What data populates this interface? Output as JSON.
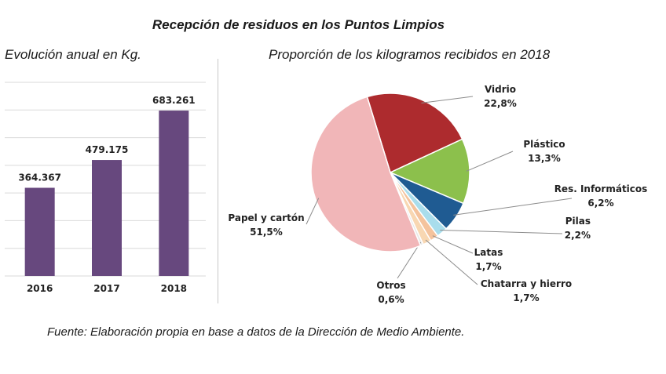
{
  "header": {
    "title": "Recepción de residuos en los Puntos Limpios",
    "bar_subtitle": "Evolución anual en Kg.",
    "pie_subtitle": "Proporción de los kilogramos recibidos en 2018"
  },
  "footer": {
    "source": "Fuente: Elaboración propia en base a datos de la Dirección de Medio Ambiente."
  },
  "colors": {
    "bar": "#67487e",
    "vidrio": "#ad2b2e",
    "plastico": "#8cc04c",
    "res_informaticos": "#1f5b92",
    "pilas": "#a9ddec",
    "latas": "#f4c39d",
    "chatarra": "#f8d7b2",
    "otros": "#e8e8e8",
    "papel": "#f1b6b8"
  },
  "chart_data": [
    {
      "type": "bar",
      "categories": [
        "2016",
        "2017",
        "2018"
      ],
      "values": [
        364367,
        479175,
        683261
      ],
      "value_labels": [
        "364.367",
        "479.175",
        "683.261"
      ],
      "ylim": [
        0,
        800000
      ],
      "grid": true,
      "xlabel": "",
      "ylabel": ""
    },
    {
      "type": "pie",
      "slices": [
        {
          "label": "Vidrio",
          "pct_label": "22,8%",
          "value": 22.8,
          "color_key": "vidrio"
        },
        {
          "label": "Plástico",
          "pct_label": "13,3%",
          "value": 13.3,
          "color_key": "plastico"
        },
        {
          "label": "Res. Informáticos",
          "pct_label": "6,2%",
          "value": 6.2,
          "color_key": "res_informaticos"
        },
        {
          "label": "Pilas",
          "pct_label": "2,2%",
          "value": 2.2,
          "color_key": "pilas"
        },
        {
          "label": "Latas",
          "pct_label": "1,7%",
          "value": 1.7,
          "color_key": "latas"
        },
        {
          "label": "Chatarra y hierro",
          "pct_label": "1,7%",
          "value": 1.7,
          "color_key": "chatarra"
        },
        {
          "label": "Otros",
          "pct_label": "0,6%",
          "value": 0.6,
          "color_key": "otros"
        },
        {
          "label": "Papel y cartón",
          "pct_label": "51,5%",
          "value": 51.5,
          "color_key": "papel"
        }
      ]
    }
  ]
}
